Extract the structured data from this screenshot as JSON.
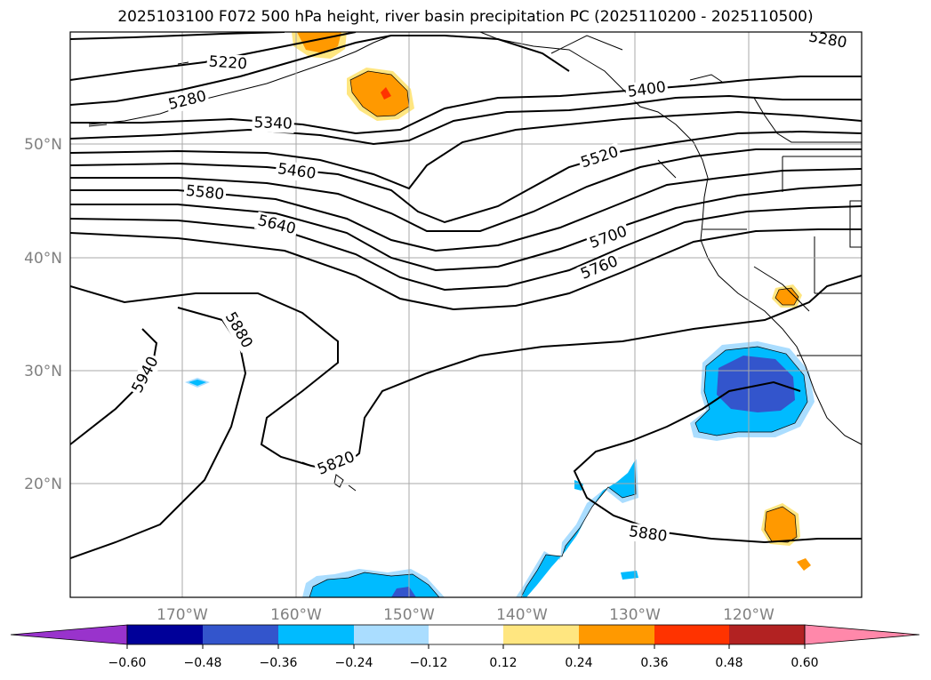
{
  "title": "2025103100 F072 500 hPa height, river basin precipitation PC (2025110200 - 2025110500)",
  "lat_labels": [
    "50°N",
    "40°N",
    "30°N",
    "20°N"
  ],
  "lon_labels": [
    "170°W",
    "160°W",
    "150°W",
    "140°W",
    "130°W",
    "120°W"
  ],
  "contour_labels": [
    "5220",
    "5280",
    "5340",
    "5400",
    "5460",
    "5520",
    "5580",
    "5640",
    "5700",
    "5760",
    "5820",
    "5880",
    "5940",
    "5280",
    "5880"
  ],
  "colorbar": {
    "ticks": [
      "−0.60",
      "−0.48",
      "−0.36",
      "−0.24",
      "−0.12",
      "0.12",
      "0.24",
      "0.36",
      "0.48",
      "0.60"
    ],
    "colors": [
      "#9933cc",
      "#000099",
      "#3355cc",
      "#00bbff",
      "#aaddff",
      "#ffffff",
      "#ffe680",
      "#ff9900",
      "#ff3300",
      "#b22222",
      "#ff88aa"
    ]
  }
}
